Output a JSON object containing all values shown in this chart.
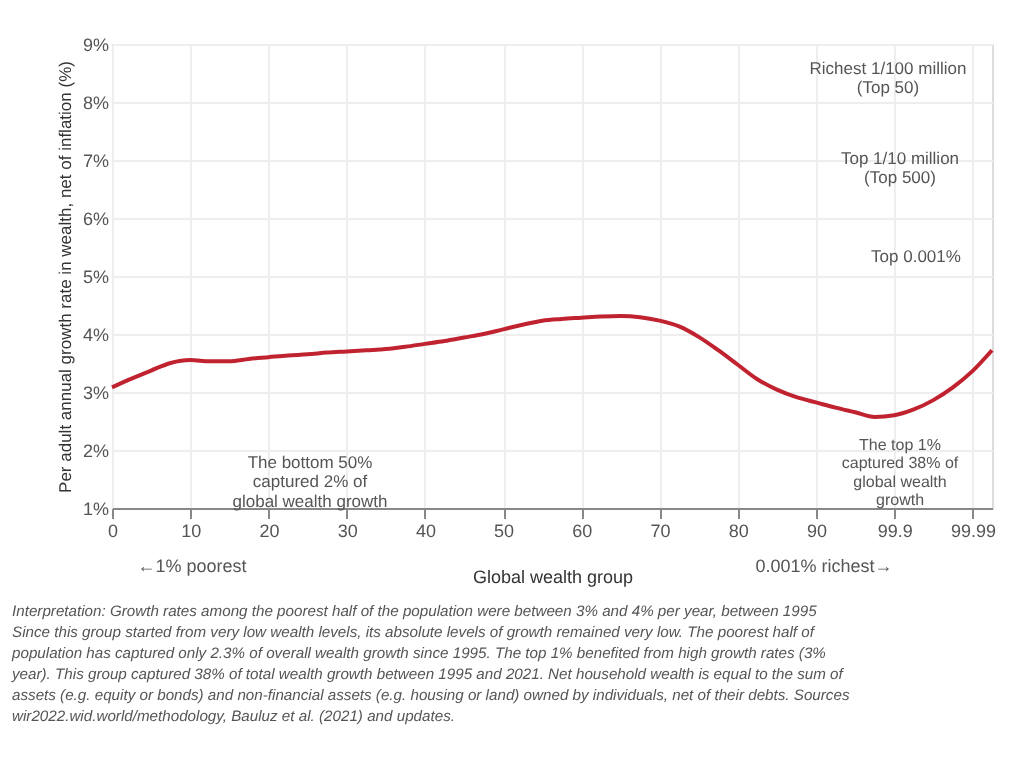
{
  "chart_data": {
    "type": "line",
    "xlabel": "Global wealth group",
    "ylabel": "Per adult annual growth rate in wealth, net of inflation (%)",
    "categories": [
      "0",
      null,
      null,
      null,
      "10",
      null,
      null,
      null,
      "20",
      null,
      null,
      null,
      "30",
      null,
      null,
      null,
      "40",
      null,
      null,
      null,
      "50",
      null,
      null,
      null,
      "60",
      null,
      null,
      null,
      "70",
      null,
      null,
      null,
      "80",
      null,
      null,
      null,
      "90",
      null,
      null,
      null,
      "99.9",
      null,
      null,
      null,
      "99.99",
      null
    ],
    "series": [
      {
        "color": "#c0232f",
        "values": [
          3.08,
          3.23,
          3.37,
          3.5,
          3.55,
          3.53,
          3.53,
          3.57,
          3.6,
          3.63,
          3.65,
          3.68,
          3.7,
          3.72,
          3.74,
          3.78,
          3.83,
          3.88,
          3.94,
          4.0,
          4.08,
          4.16,
          4.23,
          4.26,
          4.28,
          4.3,
          4.31,
          4.29,
          4.23,
          4.13,
          3.95,
          3.72,
          3.47,
          3.22,
          3.04,
          2.91,
          2.82,
          2.73,
          2.65,
          2.57,
          2.6,
          2.7,
          2.86,
          3.08,
          3.36,
          3.72
        ]
      }
    ],
    "ylim": [
      1,
      9
    ],
    "yticks": [
      {
        "value": 1,
        "label": "1%"
      },
      {
        "value": 2,
        "label": "2%"
      },
      {
        "value": 3,
        "label": "3%"
      },
      {
        "value": 4,
        "label": "4%"
      },
      {
        "value": 5,
        "label": "5%"
      },
      {
        "value": 6,
        "label": "6%"
      },
      {
        "value": 7,
        "label": "7%"
      },
      {
        "value": 8,
        "label": "8%"
      },
      {
        "value": 9,
        "label": "9%"
      }
    ],
    "grid": true,
    "annotations": [
      "The bottom 50%\ncaptured 2% of\nglobal wealth growth",
      "The top 1%\ncaptured 38% of\nglobal wealth\ngrowth",
      "Richest 1/100 million\n(Top 50)",
      "Top 1/10 million\n(Top 500)",
      "Top 0.001%",
      "←1% poorest",
      "0.001% richest→",
      "Interpretation: Growth rates among the poorest half of the population were between 3% and 4% per year, between 1995\nSince this group started from very low wealth levels, its absolute levels of growth remained very low. The poorest half of\npopulation has captured only 2.3% of overall wealth growth since 1995. The top 1% benefited from high growth rates (3%\nyear). This group captured 38% of total wealth growth between 1995 and 2021. Net household wealth is equal to the sum of\nassets (e.g. equity or bonds) and non-financial assets (e.g. housing or land) owned by individuals, net of their debts. Sources\nwir2022.wid.world/methodology, Bauluz et al. (2021) and updates."
    ]
  }
}
